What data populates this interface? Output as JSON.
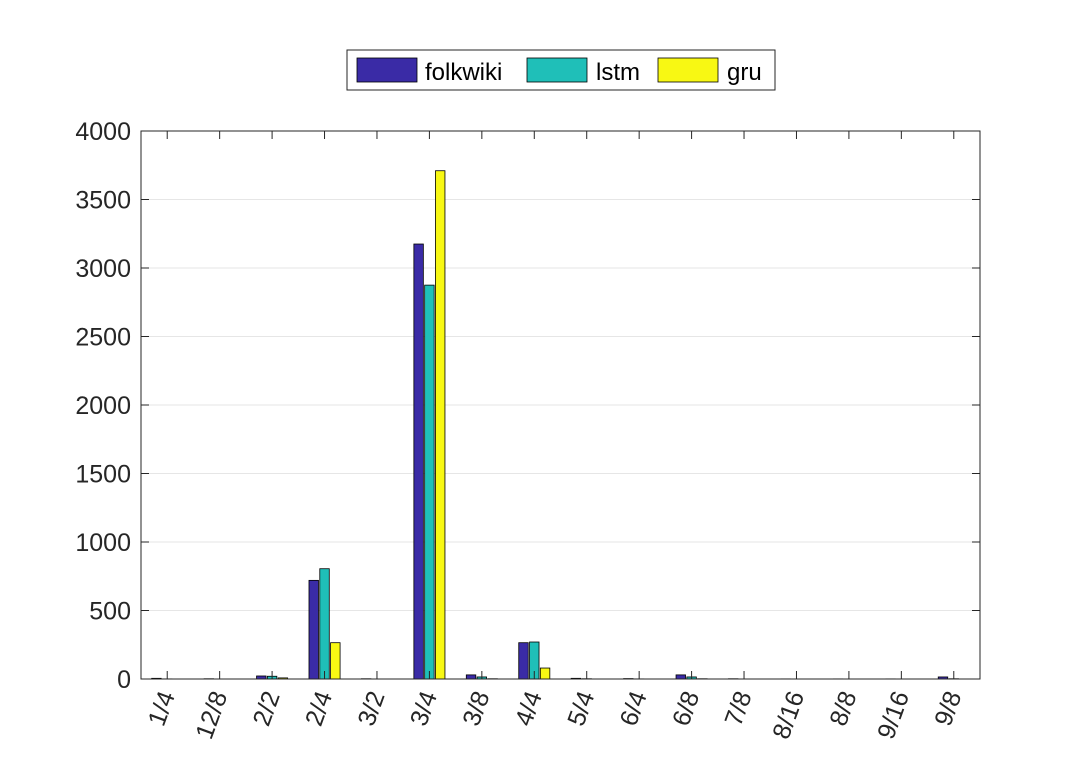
{
  "chart_data": {
    "type": "bar",
    "title": "",
    "xlabel": "",
    "ylabel": "",
    "categories": [
      "1/4",
      "12/8",
      "2/2",
      "2/4",
      "3/2",
      "3/4",
      "3/8",
      "4/4",
      "5/4",
      "6/4",
      "6/8",
      "7/8",
      "8/16",
      "8/8",
      "9/16",
      "9/8"
    ],
    "series": [
      {
        "name": "folkwiki",
        "color": "#3a2ba6",
        "values": [
          5,
          2,
          22,
          720,
          2,
          3175,
          30,
          265,
          5,
          3,
          30,
          2,
          1,
          1,
          1,
          15
        ]
      },
      {
        "name": "lstm",
        "color": "#1fbfb8",
        "values": [
          1,
          0,
          20,
          805,
          0,
          2875,
          15,
          270,
          2,
          1,
          15,
          0,
          0,
          0,
          0,
          2
        ]
      },
      {
        "name": "gru",
        "color": "#f8f813",
        "values": [
          0,
          0,
          8,
          265,
          0,
          3710,
          2,
          80,
          0,
          0,
          2,
          0,
          0,
          0,
          0,
          0
        ]
      }
    ],
    "ylim": [
      0,
      4000
    ],
    "yticks": [
      0,
      500,
      1000,
      1500,
      2000,
      2500,
      3000,
      3500,
      4000
    ],
    "grid": "y-major",
    "legend_position": "top-center-outside"
  }
}
